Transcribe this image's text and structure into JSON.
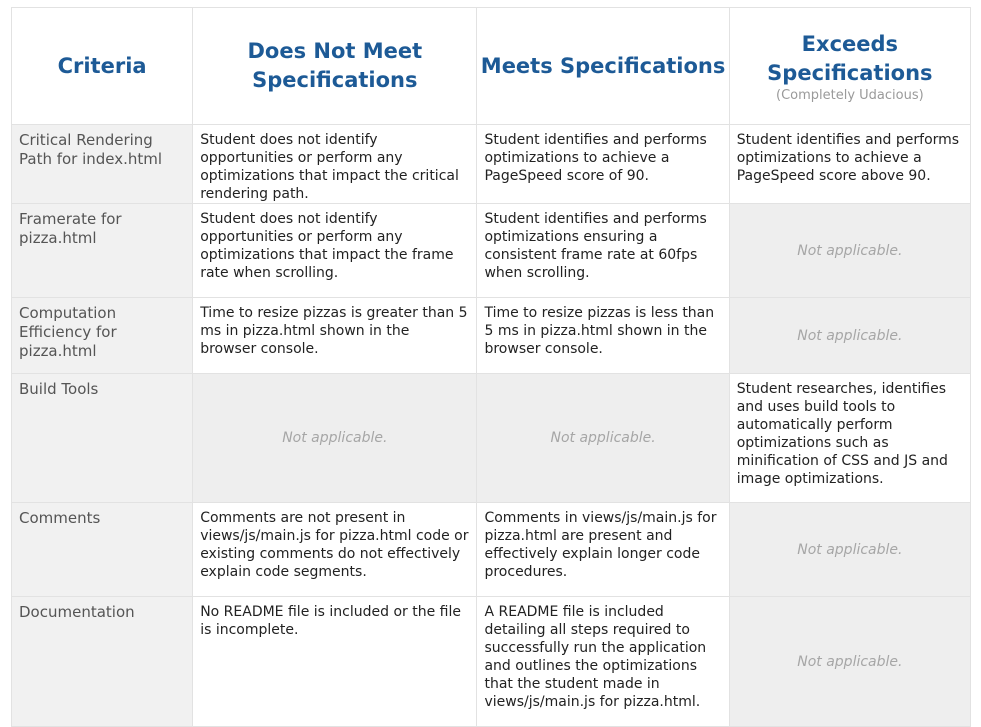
{
  "headers": {
    "criteria": "Criteria",
    "does_not_meet": "Does Not Meet Specifications",
    "meets": "Meets Specifications",
    "exceeds": "Exceeds Specifications",
    "exceeds_sub": "(Completely Udacious)"
  },
  "not_applicable": "Not applicable.",
  "rows": [
    {
      "criteria": "Critical Rendering Path for index.html",
      "does_not_meet": "Student does not identify opportunities or perform any optimizations that impact the critical rendering path.",
      "meets": "Student identifies and performs optimizations to achieve a PageSpeed score of 90.",
      "exceeds": "Student identifies and performs optimizations to achieve a PageSpeed score above 90."
    },
    {
      "criteria": "Framerate for pizza.html",
      "does_not_meet": "Student does not identify opportunities or perform any optimizations that impact the frame rate when scrolling.",
      "meets": "Student identifies and performs optimizations ensuring a consistent frame rate at 60fps when scrolling.",
      "exceeds": "Not applicable."
    },
    {
      "criteria": "Computation Efficiency for pizza.html",
      "does_not_meet": "Time to resize pizzas is greater than 5 ms in pizza.html shown in the browser console.",
      "meets": "Time to resize pizzas is less than 5 ms in pizza.html shown in the browser console.",
      "exceeds": "Not applicable."
    },
    {
      "criteria": "Build Tools",
      "does_not_meet": "Not applicable.",
      "meets": "Not applicable.",
      "exceeds": "Student researches, identifies and uses build tools to automatically perform optimizations such as minification of CSS and JS and image optimizations."
    },
    {
      "criteria": "Comments",
      "does_not_meet": "Comments are not present in views/js/main.js for pizza.html code or existing comments do not effectively explain code segments.",
      "meets": "Comments in views/js/main.js for pizza.html are present and effectively explain longer code procedures.",
      "exceeds": "Not applicable."
    },
    {
      "criteria": "Documentation",
      "does_not_meet": "No README file is included or the file is incomplete.",
      "meets": "A README file is included detailing all steps required to successfully run the application and outlines the optimizations that the student made in views/js/main.js for pizza.html.",
      "exceeds": "Not applicable."
    }
  ]
}
